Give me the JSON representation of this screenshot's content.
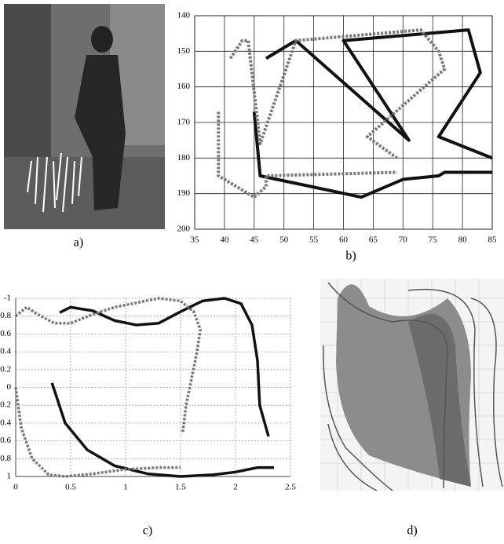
{
  "captions": [
    "a)",
    "b)",
    "c)",
    "d)"
  ],
  "chart_data": [
    {
      "type": "line",
      "xlim": [
        35,
        85
      ],
      "ylim": [
        140,
        200
      ],
      "y_inverted": true,
      "xticks": [
        35,
        40,
        45,
        50,
        55,
        60,
        65,
        70,
        75,
        80,
        85
      ],
      "yticks": [
        140,
        150,
        160,
        170,
        180,
        190,
        200
      ],
      "grid": true,
      "series": [
        {
          "color": "#111111",
          "style": "solid",
          "x": [
            47,
            52,
            71,
            60,
            81,
            83,
            76,
            85,
            null,
            45,
            46,
            63,
            70,
            76,
            77,
            85
          ],
          "values": [
            152,
            147,
            175,
            147,
            144,
            156,
            174,
            180,
            null,
            167,
            185,
            191,
            186,
            185,
            184,
            184
          ]
        },
        {
          "color": "#777777",
          "style": "dotted",
          "x": [
            39,
            39,
            45,
            47,
            47,
            69,
            null,
            41,
            43,
            44,
            46,
            52,
            73,
            76,
            77,
            64,
            69
          ],
          "values": [
            167,
            185,
            191,
            188,
            185,
            184,
            null,
            152,
            147,
            147,
            176,
            147,
            144,
            150,
            155,
            174,
            180
          ]
        }
      ]
    },
    {
      "type": "line",
      "xlim": [
        0,
        2.5
      ],
      "ylim": [
        -1,
        1
      ],
      "y_inverted": true,
      "xticks": [
        0,
        0.5,
        1,
        1.5,
        2,
        2.5
      ],
      "yticks": [
        {
          "value": -1,
          "label": "-1"
        },
        {
          "value": -0.8,
          "label": "0.8"
        },
        {
          "value": -0.6,
          "label": "0.6"
        },
        {
          "value": -0.4,
          "label": "0.4"
        },
        {
          "value": -0.2,
          "label": "0.2"
        },
        0,
        0.2,
        0.4,
        0.6,
        0.8,
        1
      ],
      "grid": true,
      "series": [
        {
          "color": "#111111",
          "style": "solid",
          "x": [
            0.4,
            0.5,
            0.7,
            0.9,
            1.1,
            1.3,
            1.5,
            1.7,
            1.9,
            2.05,
            2.15,
            2.2,
            2.22,
            2.3,
            null,
            0.33,
            0.45,
            0.65,
            0.9,
            1.2,
            1.5,
            1.8,
            2.0,
            2.2,
            2.35
          ],
          "values": [
            -0.84,
            -0.9,
            -0.86,
            -0.75,
            -0.7,
            -0.72,
            -0.85,
            -0.97,
            -1,
            -0.94,
            -0.7,
            -0.3,
            0.2,
            0.55,
            null,
            -0.05,
            0.4,
            0.7,
            0.88,
            0.97,
            1,
            0.98,
            0.95,
            0.9,
            0.9
          ]
        },
        {
          "color": "#777777",
          "style": "dotted",
          "x": [
            0,
            0.1,
            0.2,
            0.35,
            0.5,
            0.7,
            0.9,
            1.1,
            1.3,
            1.5,
            1.62,
            1.68,
            1.65,
            1.6,
            1.55,
            1.52,
            null,
            0,
            0.05,
            0.15,
            0.3,
            0.45,
            0.7,
            1,
            1.3,
            1.5
          ],
          "values": [
            -0.8,
            -0.9,
            -0.82,
            -0.72,
            -0.72,
            -0.82,
            -0.9,
            -0.95,
            -1,
            -0.97,
            -0.85,
            -0.65,
            -0.4,
            -0.1,
            0.2,
            0.5,
            null,
            0,
            0.45,
            0.8,
            0.98,
            1,
            0.97,
            0.92,
            0.9,
            0.9
          ]
        }
      ]
    }
  ]
}
